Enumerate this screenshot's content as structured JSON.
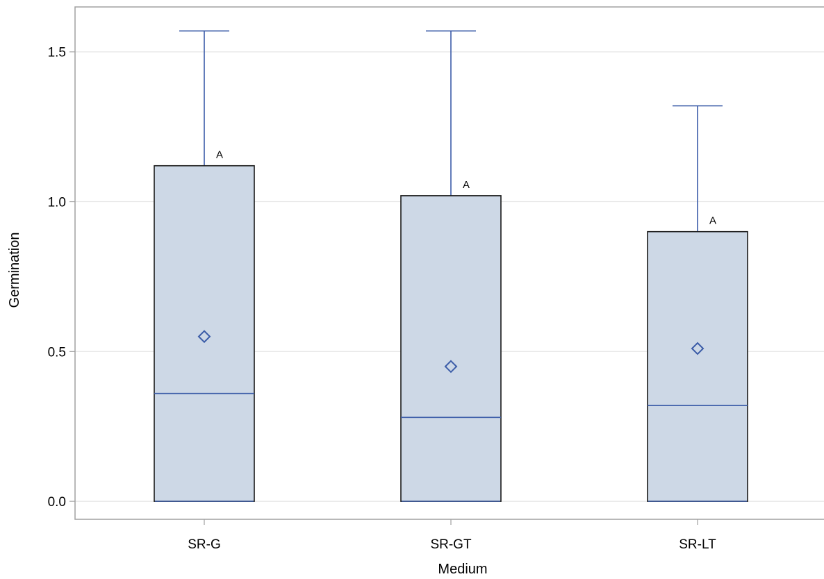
{
  "chart_data": {
    "type": "box",
    "title": "",
    "xlabel": "Medium",
    "ylabel": "Germination",
    "ylim": [
      -0.06,
      1.65
    ],
    "yticks": [
      0.0,
      0.5,
      1.0,
      1.5
    ],
    "ytick_labels": [
      "0.0",
      "0.5",
      "1.0",
      "1.5"
    ],
    "grid": true,
    "categories": [
      "SR-G",
      "SR-GT",
      "SR-LT"
    ],
    "boxes": [
      {
        "category": "SR-G",
        "min": 0.0,
        "q1": 0.0,
        "median": 0.36,
        "q3": 1.12,
        "max": 1.57,
        "mean": 0.55,
        "group_letter": "A"
      },
      {
        "category": "SR-GT",
        "min": 0.0,
        "q1": 0.0,
        "median": 0.28,
        "q3": 1.02,
        "max": 1.57,
        "mean": 0.45,
        "group_letter": "A"
      },
      {
        "category": "SR-LT",
        "min": 0.0,
        "q1": 0.0,
        "median": 0.32,
        "q3": 0.9,
        "max": 1.32,
        "mean": 0.51,
        "group_letter": "A"
      }
    ],
    "colors": {
      "box_fill": "#cdd8e6",
      "box_edge": "#1a1a1a",
      "whisker": "#3b5ca8",
      "median": "#3b5ca8",
      "mean_marker": "#3b5ca8",
      "grid": "#e4e4e4",
      "frame": "#a0a0a0"
    }
  }
}
